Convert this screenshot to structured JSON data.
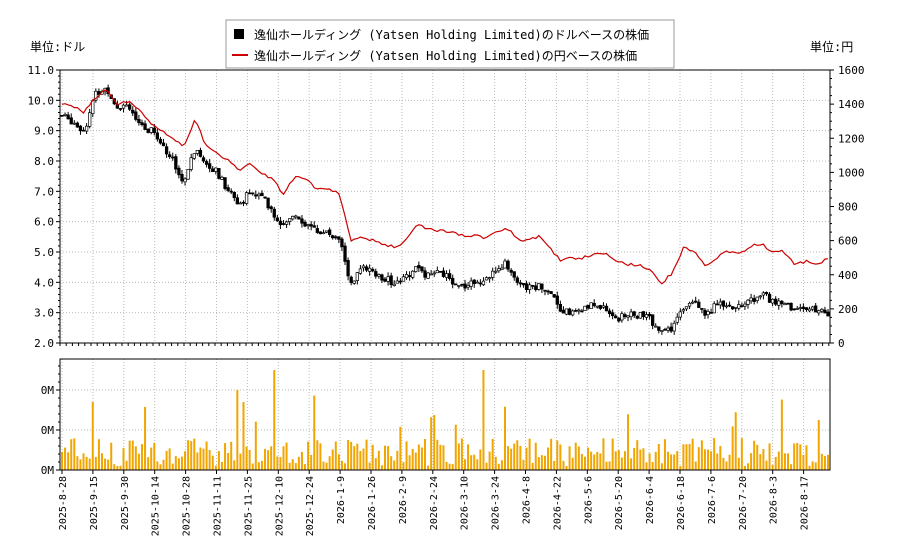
{
  "chart_data": [
    {
      "type": "candlestick+line",
      "legend": {
        "placement": "top-center",
        "entries": [
          {
            "label": "逸仙ホールディング (Yatsen Holding Limited)のドルベースの株価",
            "marker": "black-square"
          },
          {
            "label": "逸仙ホールディング (Yatsen Holding Limited)の円ベースの株価",
            "marker": "red-line"
          }
        ]
      },
      "ylabel_left": "単位:ドル",
      "ylabel_right": "単位:円",
      "ylim_left": [
        2.0,
        11.0
      ],
      "ylim_right": [
        0,
        1600
      ],
      "yticks_left": [
        "2.0",
        "3.0",
        "4.0",
        "5.0",
        "6.0",
        "7.0",
        "8.0",
        "9.0",
        "10.0",
        "11.0"
      ],
      "yticks_right": [
        "0",
        "200",
        "400",
        "600",
        "800",
        "1000",
        "1200",
        "1400",
        "1600"
      ],
      "grid": true,
      "x_dates": [
        "2025-8-28",
        "2025-9-15",
        "2025-9-30",
        "2025-10-14",
        "2025-10-28",
        "2025-11-11",
        "2025-11-25",
        "2025-12-10",
        "2025-12-24",
        "2026-1-9",
        "2026-1-26",
        "2026-2-9",
        "2026-2-24",
        "2026-3-10",
        "2026-3-24",
        "2026-4-8",
        "2026-4-22",
        "2026-5-6",
        "2026-5-20",
        "2026-6-4",
        "2026-6-18",
        "2026-7-6",
        "2026-7-20",
        "2026-8-3",
        "2026-8-17"
      ],
      "usd_keypoints": [
        9.5,
        9.3,
        9.0,
        10.2,
        10.4,
        9.8,
        9.9,
        9.1,
        9.0,
        8.6,
        8.0,
        7.3,
        8.4,
        8.0,
        7.6,
        7.0,
        6.6,
        7.0,
        6.8,
        6.3,
        5.8,
        6.3,
        5.9,
        5.7,
        5.6,
        5.5,
        3.9,
        4.5,
        4.3,
        4.1,
        4.0,
        4.2,
        4.5,
        4.2,
        4.3,
        4.1,
        3.9,
        4.0,
        4.1,
        4.3,
        4.7,
        3.9,
        3.8,
        3.9,
        3.7,
        3.1,
        3.0,
        3.1,
        3.3,
        3.1,
        2.8,
        2.9,
        2.9,
        2.8,
        2.3,
        2.5,
        3.2,
        3.5,
        2.9,
        3.3,
        3.1,
        3.2,
        3.4,
        3.6,
        3.4,
        3.3,
        3.1,
        3.2,
        3.0,
        3.0
      ],
      "jpy_keypoints": [
        1400,
        1390,
        1350,
        1440,
        1480,
        1400,
        1420,
        1360,
        1290,
        1250,
        1200,
        1150,
        1320,
        1150,
        1110,
        1070,
        1010,
        1050,
        1000,
        960,
        870,
        980,
        960,
        900,
        900,
        880,
        600,
        620,
        600,
        580,
        560,
        600,
        690,
        670,
        660,
        650,
        630,
        630,
        620,
        640,
        680,
        610,
        600,
        630,
        550,
        480,
        500,
        500,
        520,
        530,
        480,
        460,
        460,
        430,
        350,
        410,
        560,
        530,
        450,
        500,
        540,
        520,
        570,
        580,
        540,
        540,
        460,
        480,
        470,
        490
      ],
      "volume_yticks": [
        "0M",
        "0M",
        "0M"
      ]
    }
  ]
}
